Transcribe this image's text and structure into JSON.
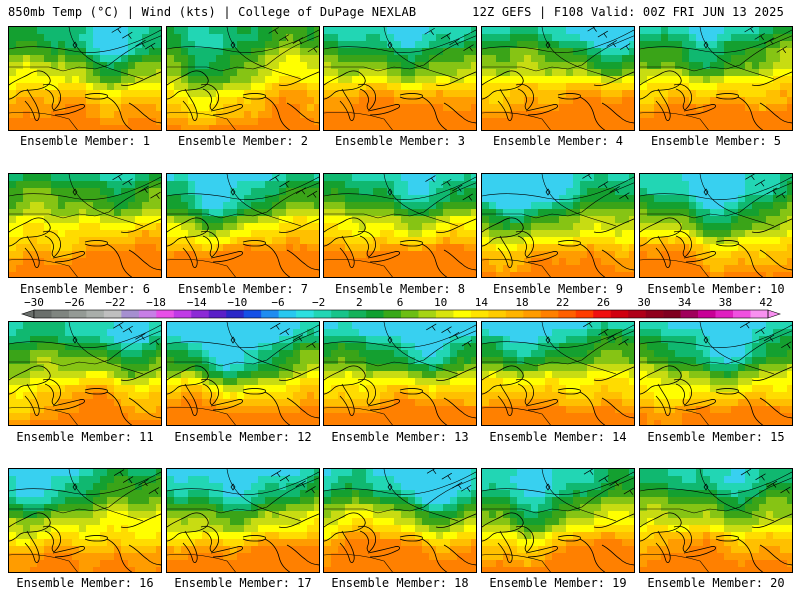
{
  "header": {
    "title_left": "850mb Temp (°C) | Wind (kts) | College of DuPage NEXLAB",
    "title_right": "12Z GEFS | F108 Valid: 00Z FRI JUN 13 2025"
  },
  "panels": [
    {
      "label": "Ensemble Member: 1"
    },
    {
      "label": "Ensemble Member: 2"
    },
    {
      "label": "Ensemble Member: 3"
    },
    {
      "label": "Ensemble Member: 4"
    },
    {
      "label": "Ensemble Member: 5"
    },
    {
      "label": "Ensemble Member: 6"
    },
    {
      "label": "Ensemble Member: 7"
    },
    {
      "label": "Ensemble Member: 8"
    },
    {
      "label": "Ensemble Member: 9"
    },
    {
      "label": "Ensemble Member: 10"
    },
    {
      "label": "Ensemble Member: 11"
    },
    {
      "label": "Ensemble Member: 12"
    },
    {
      "label": "Ensemble Member: 13"
    },
    {
      "label": "Ensemble Member: 14"
    },
    {
      "label": "Ensemble Member: 15"
    },
    {
      "label": "Ensemble Member: 16"
    },
    {
      "label": "Ensemble Member: 17"
    },
    {
      "label": "Ensemble Member: 18"
    },
    {
      "label": "Ensemble Member: 19"
    },
    {
      "label": "Ensemble Member: 20"
    }
  ],
  "colorbar": {
    "labels": [
      "−30",
      "−26",
      "−22",
      "−18",
      "−14",
      "−10",
      "−6",
      "−2",
      "2",
      "6",
      "10",
      "14",
      "18",
      "22",
      "26",
      "30",
      "34",
      "38",
      "42"
    ],
    "colors": [
      "#6a6f6c",
      "#7f8580",
      "#949a95",
      "#a9aeaa",
      "#bfbfbf",
      "#a58fd0",
      "#c77ee6",
      "#e84fe8",
      "#c03ae6",
      "#8c2ad6",
      "#5a20c8",
      "#2a28c8",
      "#1450e6",
      "#1e8cf0",
      "#28c8f0",
      "#2ce0e0",
      "#22d6b4",
      "#18c48a",
      "#14b25a",
      "#10a030",
      "#38a818",
      "#6cbe14",
      "#a6d414",
      "#d8e40e",
      "#ffff00",
      "#ffe400",
      "#ffcc00",
      "#ffb400",
      "#ff9c00",
      "#ff8000",
      "#ff6000",
      "#ff3c00",
      "#f01010",
      "#d00010",
      "#b00018",
      "#90001c",
      "#800020",
      "#a0005c",
      "#c80096",
      "#e020c0",
      "#f050e0",
      "#f890f0"
    ]
  }
}
